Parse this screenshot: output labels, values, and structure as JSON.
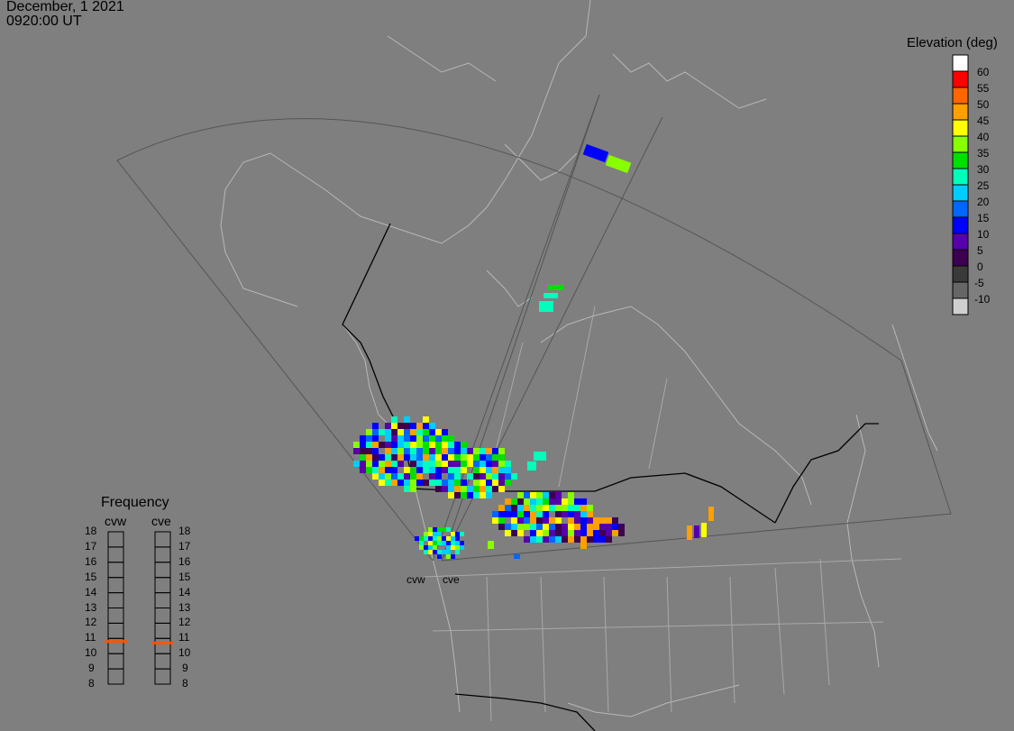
{
  "header": {
    "date": "December, 1 2021",
    "time": "0920:00 UT"
  },
  "colorbar": {
    "title": "Elevation (deg)",
    "levels": [
      {
        "label": "60",
        "color": "#ffffff"
      },
      {
        "label": "55",
        "color": "#ff0000"
      },
      {
        "label": "50",
        "color": "#ff6600"
      },
      {
        "label": "45",
        "color": "#ff9f00"
      },
      {
        "label": "40",
        "color": "#ffff00"
      },
      {
        "label": "35",
        "color": "#88ff00"
      },
      {
        "label": "30",
        "color": "#00e000"
      },
      {
        "label": "25",
        "color": "#00ffbb"
      },
      {
        "label": "20",
        "color": "#00ccff"
      },
      {
        "label": "15",
        "color": "#0066ff"
      },
      {
        "label": "10",
        "color": "#0000ff"
      },
      {
        "label": "5",
        "color": "#5500aa"
      },
      {
        "label": "0",
        "color": "#3d0050"
      },
      {
        "label": "-5",
        "color": "#3a3a3a"
      },
      {
        "label": "-10",
        "color": "#666666"
      },
      {
        "label": "",
        "color": "#d0d0d0"
      }
    ]
  },
  "frequency": {
    "title": "Frequency",
    "radars": [
      {
        "code": "cvw",
        "value_mhz": 10.8
      },
      {
        "code": "cve",
        "value_mhz": 10.7
      }
    ],
    "scale": [
      "18",
      "17",
      "16",
      "15",
      "14",
      "13",
      "12",
      "11",
      "10",
      "9",
      "8"
    ],
    "marker_color": "#ff5500"
  },
  "radar_sites": {
    "cvw": "cvw",
    "cve": "cve"
  }
}
